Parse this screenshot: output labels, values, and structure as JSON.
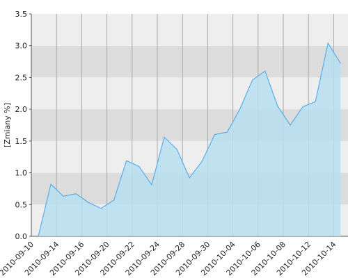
{
  "chart_data": {
    "type": "area",
    "ylabel": "[Zmiany %]",
    "categories": [
      "2010-09-10",
      null,
      "2010-09-14",
      null,
      "2010-09-16",
      null,
      "2010-09-20",
      null,
      "2010-09-22",
      null,
      "2010-09-24",
      null,
      "2010-09-28",
      null,
      "2010-09-30",
      null,
      "2010-10-04",
      null,
      "2010-10-06",
      null,
      "2010-10-08",
      null,
      "2010-10-12",
      null,
      "2010-10-14"
    ],
    "values": [
      0.0,
      0.82,
      0.63,
      0.67,
      0.53,
      0.44,
      0.57,
      1.19,
      1.1,
      0.81,
      1.56,
      1.37,
      0.92,
      1.18,
      1.6,
      1.64,
      2.0,
      2.46,
      2.6,
      2.05,
      1.75,
      2.04,
      2.12,
      3.04,
      2.72
    ],
    "color": "#b6def0",
    "line_color": "#5aaee8",
    "ylim": [
      0,
      3.5
    ],
    "yticks": [
      {
        "value": 0,
        "label": "0.0"
      },
      0.5,
      {
        "value": 1,
        "label": "1.0"
      },
      1.5,
      {
        "value": 2,
        "label": "2.0"
      },
      2.5,
      {
        "value": 3,
        "label": "3.0"
      },
      3.5
    ],
    "grid": true
  }
}
